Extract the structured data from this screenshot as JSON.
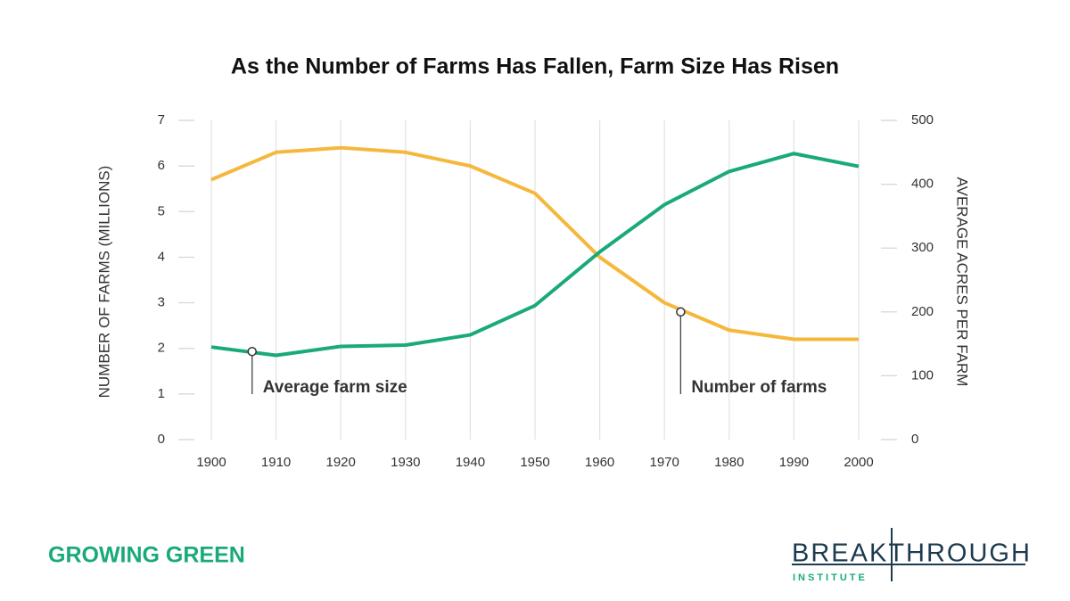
{
  "chart_data": {
    "type": "line",
    "title": "As the Number of Farms Has Fallen, Farm Size Has Risen",
    "y_label": "NUMBER OF FARMS (MILLIONS)",
    "y2_label": "AVERAGE ACRES PER FARM",
    "x": [
      1900,
      1910,
      1920,
      1930,
      1940,
      1950,
      1960,
      1970,
      1980,
      1990,
      2000
    ],
    "xlim": [
      1900,
      2000
    ],
    "xticks": [
      1900,
      1910,
      1920,
      1930,
      1940,
      1950,
      1960,
      1970,
      1980,
      1990,
      2000
    ],
    "ylim": [
      0,
      7
    ],
    "yticks": [
      0,
      1,
      2,
      3,
      4,
      5,
      6,
      7
    ],
    "y2lim": [
      0,
      500
    ],
    "y2ticks": [
      0,
      100,
      200,
      300,
      400,
      500
    ],
    "grid": true,
    "series": [
      {
        "name": "Number of farms",
        "color": "#f5b83d",
        "axis": "y",
        "values": [
          5.7,
          6.3,
          6.4,
          6.3,
          6.0,
          5.4,
          4.0,
          3.0,
          2.4,
          2.2,
          2.2
        ]
      },
      {
        "name": "Average farm size",
        "color": "#1aaa7a",
        "axis": "y2",
        "values": [
          145,
          132,
          146,
          148,
          164,
          210,
          294,
          368,
          420,
          448,
          428
        ]
      }
    ],
    "annotations": [
      {
        "series": 1,
        "x": 1906.3,
        "y": 138
      },
      {
        "series": 0,
        "x": 1972.5,
        "y": 2.8
      }
    ]
  },
  "branding": {
    "left": "GROWING GREEN",
    "logo": "BREAKTHROUGH",
    "logo_sub": "INSTITUTE"
  }
}
